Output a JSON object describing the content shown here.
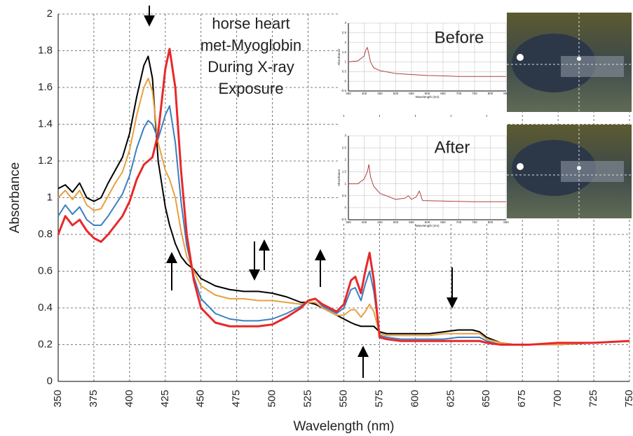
{
  "chart_data": {
    "type": "line",
    "title_lines": [
      "horse heart",
      "met-Myoglobin",
      "During X-ray",
      "Exposure"
    ],
    "xlabel": "Wavelength  (nm)",
    "ylabel": "Absorbance",
    "xlim": [
      350,
      750
    ],
    "ylim": [
      0,
      2
    ],
    "xticks": [
      350,
      375,
      400,
      425,
      450,
      475,
      500,
      525,
      550,
      575,
      600,
      625,
      650,
      675,
      700,
      725,
      750
    ],
    "yticks": [
      0,
      0.2,
      0.4,
      0.6,
      0.8,
      1,
      1.2,
      1.4,
      1.6,
      1.8,
      2
    ],
    "grid": true,
    "x": [
      350,
      355,
      360,
      365,
      370,
      375,
      380,
      385,
      390,
      395,
      400,
      405,
      410,
      413,
      416,
      420,
      425,
      428,
      432,
      436,
      440,
      445,
      450,
      460,
      470,
      480,
      490,
      500,
      510,
      520,
      525,
      530,
      535,
      540,
      545,
      550,
      555,
      558,
      562,
      565,
      568,
      571,
      575,
      580,
      590,
      600,
      610,
      620,
      630,
      640,
      645,
      650,
      660,
      670,
      680,
      700,
      725,
      750
    ],
    "series": [
      {
        "color": "#000000",
        "values": [
          1.05,
          1.07,
          1.03,
          1.08,
          1.0,
          0.98,
          1.0,
          1.08,
          1.15,
          1.22,
          1.35,
          1.55,
          1.72,
          1.77,
          1.65,
          1.2,
          0.95,
          0.85,
          0.75,
          0.68,
          0.64,
          0.61,
          0.56,
          0.52,
          0.5,
          0.49,
          0.49,
          0.48,
          0.46,
          0.43,
          0.43,
          0.42,
          0.4,
          0.38,
          0.36,
          0.34,
          0.32,
          0.31,
          0.3,
          0.3,
          0.3,
          0.3,
          0.27,
          0.26,
          0.26,
          0.26,
          0.26,
          0.27,
          0.28,
          0.28,
          0.27,
          0.24,
          0.21,
          0.2,
          0.2,
          0.2,
          0.21,
          0.22
        ]
      },
      {
        "color": "#e8a040",
        "values": [
          1.0,
          1.04,
          0.99,
          1.04,
          0.96,
          0.93,
          0.94,
          1.01,
          1.08,
          1.14,
          1.26,
          1.45,
          1.6,
          1.65,
          1.58,
          1.3,
          1.15,
          1.1,
          1.0,
          0.82,
          0.68,
          0.6,
          0.52,
          0.47,
          0.45,
          0.45,
          0.44,
          0.44,
          0.43,
          0.42,
          0.43,
          0.43,
          0.4,
          0.38,
          0.36,
          0.36,
          0.39,
          0.39,
          0.35,
          0.38,
          0.42,
          0.38,
          0.26,
          0.25,
          0.25,
          0.25,
          0.25,
          0.26,
          0.26,
          0.26,
          0.26,
          0.23,
          0.21,
          0.2,
          0.2,
          0.2,
          0.21,
          0.22
        ]
      },
      {
        "color": "#3a7fc0",
        "values": [
          0.9,
          0.96,
          0.91,
          0.95,
          0.88,
          0.85,
          0.85,
          0.9,
          0.96,
          1.02,
          1.12,
          1.27,
          1.38,
          1.42,
          1.4,
          1.32,
          1.45,
          1.5,
          1.3,
          0.98,
          0.74,
          0.57,
          0.45,
          0.37,
          0.34,
          0.33,
          0.33,
          0.34,
          0.37,
          0.41,
          0.44,
          0.45,
          0.41,
          0.39,
          0.37,
          0.4,
          0.5,
          0.51,
          0.44,
          0.53,
          0.6,
          0.49,
          0.25,
          0.24,
          0.23,
          0.23,
          0.23,
          0.23,
          0.24,
          0.24,
          0.24,
          0.22,
          0.2,
          0.2,
          0.2,
          0.21,
          0.21,
          0.22
        ]
      },
      {
        "color": "#e8282a",
        "values": [
          0.8,
          0.9,
          0.85,
          0.88,
          0.82,
          0.78,
          0.76,
          0.8,
          0.85,
          0.9,
          0.98,
          1.1,
          1.18,
          1.2,
          1.22,
          1.35,
          1.7,
          1.81,
          1.6,
          1.15,
          0.8,
          0.55,
          0.4,
          0.32,
          0.3,
          0.3,
          0.3,
          0.31,
          0.35,
          0.4,
          0.44,
          0.45,
          0.42,
          0.4,
          0.38,
          0.42,
          0.55,
          0.57,
          0.48,
          0.6,
          0.7,
          0.55,
          0.24,
          0.23,
          0.22,
          0.22,
          0.22,
          0.22,
          0.22,
          0.22,
          0.22,
          0.21,
          0.2,
          0.2,
          0.2,
          0.21,
          0.21,
          0.22
        ]
      }
    ]
  },
  "insets": [
    {
      "type": "line",
      "caption": "Before",
      "xlabel": "Wavelength (nm)",
      "ylabel": "Absorbance",
      "color": "#b04040",
      "xlim": [
        350,
        850
      ],
      "ylim": [
        -0.5,
        3
      ],
      "xticks": [
        350,
        400,
        450,
        500,
        550,
        600,
        650,
        700,
        750,
        800,
        850
      ],
      "yticks": [
        -0.5,
        0,
        0.5,
        1,
        1.5,
        2,
        2.5,
        3
      ],
      "x": [
        350,
        380,
        400,
        405,
        410,
        415,
        420,
        430,
        450,
        500,
        550,
        600,
        650,
        700,
        750,
        800,
        850
      ],
      "values": [
        1.0,
        1.05,
        1.3,
        1.6,
        1.75,
        1.4,
        1.0,
        0.7,
        0.55,
        0.4,
        0.35,
        0.3,
        0.28,
        0.25,
        0.25,
        0.25,
        0.25
      ]
    },
    {
      "type": "line",
      "caption": "After",
      "xlabel": "Wavelength (nm)",
      "ylabel": "Absorbance",
      "color": "#b04040",
      "xlim": [
        350,
        850
      ],
      "ylim": [
        -0.5,
        3
      ],
      "xticks": [
        350,
        400,
        450,
        500,
        550,
        600,
        650,
        700,
        750,
        800,
        850
      ],
      "yticks": [
        -0.5,
        0,
        0.5,
        1,
        1.5,
        2,
        2.5,
        3
      ],
      "x": [
        350,
        380,
        400,
        410,
        415,
        420,
        430,
        450,
        500,
        530,
        540,
        550,
        565,
        575,
        585,
        650,
        750,
        850
      ],
      "values": [
        1.0,
        1.0,
        1.2,
        1.5,
        1.8,
        1.3,
        0.9,
        0.6,
        0.35,
        0.4,
        0.5,
        0.35,
        0.45,
        0.7,
        0.3,
        0.28,
        0.25,
        0.25
      ]
    }
  ]
}
